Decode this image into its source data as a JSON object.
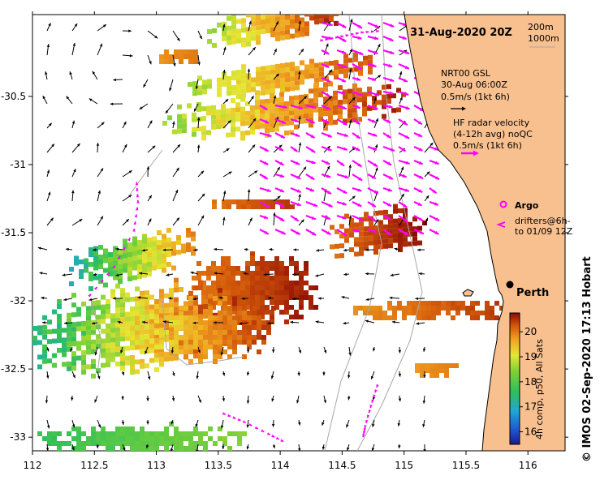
{
  "title": "31-Aug-2020 20Z",
  "depth_legend": [
    "200m",
    "1000m"
  ],
  "legend": {
    "model_line1": "NRT00 GSL",
    "model_line2": "30-Aug 06:00Z",
    "model_scale": "0.5m/s (1kt 6h)",
    "radar_line1": "HF radar velocity",
    "radar_line2": "(4-12h avg) noQC",
    "radar_scale": "0.5m/s (1kt 6h)",
    "argo_label": "Argo",
    "drifters_line1": "drifters@6h-",
    "drifters_line2": "to 01/09 12Z"
  },
  "city": {
    "name": "Perth",
    "lon": 115.88,
    "lat": -31.95
  },
  "colorbar": {
    "title": "4h comp, p50, All Sats",
    "min": 15.5,
    "max": 20.75,
    "ticks": [
      "16",
      "17",
      "18",
      "19",
      "20"
    ]
  },
  "credit": "©  IMOS 02-Sep-2020 17:13 Hobart",
  "axes": {
    "lon_range": [
      112,
      116.3
    ],
    "lat_range": [
      -33.1,
      -29.9
    ],
    "lon_ticks": [
      "112",
      "112.5",
      "113",
      "113.5",
      "114",
      "114.5",
      "115",
      "115.5",
      "116"
    ],
    "lat_ticks": [
      "-30.5",
      "-31",
      "-31.5",
      "-32",
      "-32.5",
      "-33"
    ]
  },
  "colors": {
    "land": "#f9c08f",
    "coast": "#000000",
    "radar_arrow": "#ff00ff",
    "model_arrow": "#000000",
    "isobath": "#a8a8a8"
  }
}
